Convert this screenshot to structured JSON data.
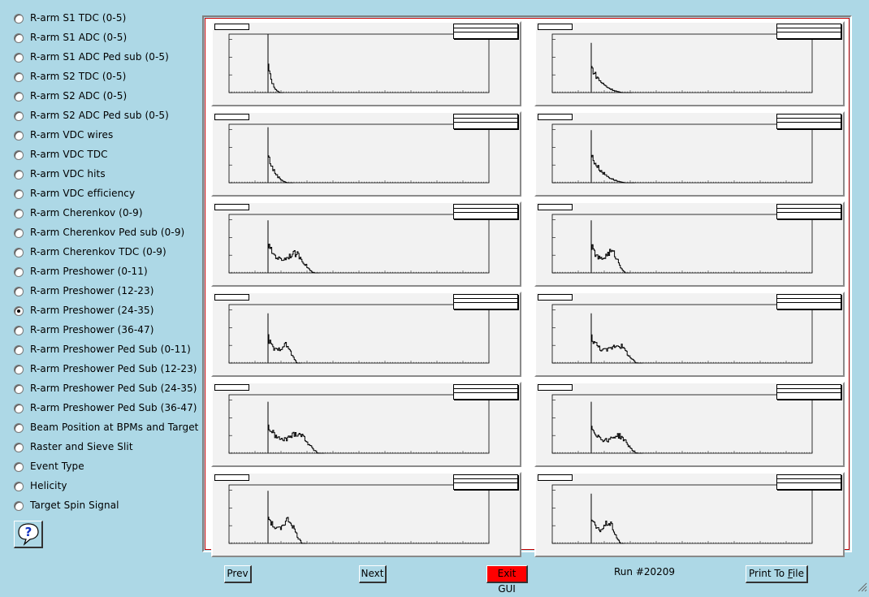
{
  "menu": {
    "items": [
      {
        "label": "R-arm S1 TDC (0-5)",
        "selected": false
      },
      {
        "label": "R-arm S1 ADC (0-5)",
        "selected": false
      },
      {
        "label": "R-arm S1 ADC Ped sub (0-5)",
        "selected": false
      },
      {
        "label": "R-arm S2 TDC (0-5)",
        "selected": false
      },
      {
        "label": "R-arm S2 ADC (0-5)",
        "selected": false
      },
      {
        "label": "R-arm S2 ADC Ped sub (0-5)",
        "selected": false
      },
      {
        "label": "R-arm VDC wires",
        "selected": false
      },
      {
        "label": "R-arm VDC TDC",
        "selected": false
      },
      {
        "label": "R-arm VDC hits",
        "selected": false
      },
      {
        "label": "R-arm VDC efficiency",
        "selected": false
      },
      {
        "label": "R-arm Cherenkov (0-9)",
        "selected": false
      },
      {
        "label": "R-arm Cherenkov Ped sub (0-9)",
        "selected": false
      },
      {
        "label": "R-arm Cherenkov TDC (0-9)",
        "selected": false
      },
      {
        "label": "R-arm Preshower (0-11)",
        "selected": false
      },
      {
        "label": "R-arm Preshower (12-23)",
        "selected": false
      },
      {
        "label": "R-arm Preshower (24-35)",
        "selected": true
      },
      {
        "label": "R-arm Preshower (36-47)",
        "selected": false
      },
      {
        "label": "R-arm Preshower Ped Sub (0-11)",
        "selected": false
      },
      {
        "label": "R-arm Preshower Ped Sub (12-23)",
        "selected": false
      },
      {
        "label": "R-arm Preshower Ped Sub (24-35)",
        "selected": false
      },
      {
        "label": "R-arm Preshower Ped Sub (36-47)",
        "selected": false
      },
      {
        "label": "Beam Position at BPMs and Target",
        "selected": false
      },
      {
        "label": "Raster and Sieve Slit",
        "selected": false
      },
      {
        "label": "Event Type",
        "selected": false
      },
      {
        "label": "Helicity",
        "selected": false
      },
      {
        "label": "Target Spin Signal",
        "selected": false
      }
    ]
  },
  "help_button": {
    "icon": "question-icon",
    "glyph": "?"
  },
  "toolbar": {
    "prev_label": "Prev",
    "next_label": "Next",
    "exit_label": "Exit GUI",
    "run_label": "Run #20209",
    "print_label_pre": "Print To ",
    "print_label_ul": "F",
    "print_label_post": "ile"
  },
  "colors": {
    "background": "#add8e6",
    "exit_button": "#ff0000",
    "canvas_border": "#c80000",
    "pad_fill": "#f2f2f2"
  },
  "histograms": {
    "shape": [
      {
        "peak": 1.0,
        "tail_end": 0.06,
        "bump": 0.0
      },
      {
        "peak": 0.85,
        "tail_end": 0.16,
        "bump": 0.0
      },
      {
        "peak": 0.95,
        "tail_end": 0.1,
        "bump": 0.0
      },
      {
        "peak": 0.9,
        "tail_end": 0.17,
        "bump": 0.0
      },
      {
        "peak": 0.9,
        "tail_end": 0.2,
        "bump": 0.4
      },
      {
        "peak": 0.9,
        "tail_end": 0.15,
        "bump": 0.45
      },
      {
        "peak": 0.85,
        "tail_end": 0.13,
        "bump": 0.38
      },
      {
        "peak": 0.85,
        "tail_end": 0.2,
        "bump": 0.38
      },
      {
        "peak": 0.88,
        "tail_end": 0.22,
        "bump": 0.42
      },
      {
        "peak": 0.88,
        "tail_end": 0.2,
        "bump": 0.36
      },
      {
        "peak": 0.9,
        "tail_end": 0.15,
        "bump": 0.5
      },
      {
        "peak": 0.85,
        "tail_end": 0.13,
        "bump": 0.44
      }
    ]
  }
}
